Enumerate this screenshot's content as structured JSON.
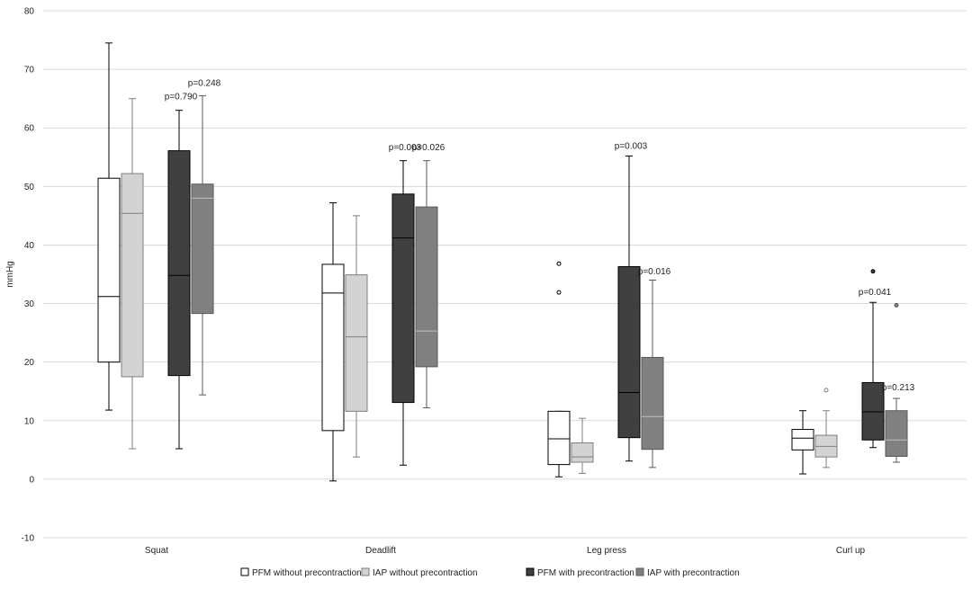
{
  "chart_data": {
    "type": "box",
    "title": "",
    "xlabel": "",
    "ylabel": "mmHg",
    "ylim": [
      -10,
      80
    ],
    "yticks": [
      -10,
      0,
      10,
      20,
      30,
      40,
      50,
      60,
      70,
      80
    ],
    "grid": true,
    "legend_position": "bottom",
    "categories": [
      "Squat",
      "Deadlift",
      "Leg press",
      "Curl up"
    ],
    "series": [
      {
        "name": "PFM without precontraction",
        "fill": "#ffffff",
        "stroke": "#000000",
        "median_color": "#000000",
        "boxes": [
          {
            "min": 11.8,
            "q1": 20.0,
            "median": 31.2,
            "q3": 51.4,
            "max": 74.5,
            "outliers": []
          },
          {
            "min": -0.3,
            "q1": 8.3,
            "median": 31.8,
            "q3": 36.7,
            "max": 47.2,
            "outliers": []
          },
          {
            "min": 0.4,
            "q1": 2.5,
            "median": 6.9,
            "q3": 11.6,
            "max": 11.6,
            "outliers": [
              31.9,
              36.8
            ]
          },
          {
            "min": 0.9,
            "q1": 5.0,
            "median": 7.0,
            "q3": 8.5,
            "max": 11.7,
            "outliers": []
          }
        ]
      },
      {
        "name": "IAP without precontraction",
        "fill": "#d3d3d3",
        "stroke": "#7f7f7f",
        "median_color": "#7f7f7f",
        "boxes": [
          {
            "min": 5.2,
            "q1": 17.5,
            "median": 45.4,
            "q3": 52.2,
            "max": 65.0,
            "outliers": []
          },
          {
            "min": 3.8,
            "q1": 11.6,
            "median": 24.3,
            "q3": 34.9,
            "max": 45.0,
            "outliers": []
          },
          {
            "min": 1.0,
            "q1": 2.9,
            "median": 3.8,
            "q3": 6.2,
            "max": 10.4,
            "outliers": []
          },
          {
            "min": 2.0,
            "q1": 3.8,
            "median": 5.6,
            "q3": 7.5,
            "max": 11.7,
            "outliers": [
              15.2
            ]
          }
        ]
      },
      {
        "name": "PFM with precontraction",
        "fill": "#404040",
        "stroke": "#000000",
        "median_color": "#000000",
        "boxes": [
          {
            "min": 5.2,
            "q1": 17.7,
            "median": 34.8,
            "q3": 56.1,
            "max": 63.0,
            "outliers": []
          },
          {
            "min": 2.4,
            "q1": 13.1,
            "median": 41.2,
            "q3": 48.7,
            "max": 54.4,
            "outliers": []
          },
          {
            "min": 3.1,
            "q1": 7.1,
            "median": 14.8,
            "q3": 36.3,
            "max": 55.2,
            "outliers": []
          },
          {
            "min": 5.4,
            "q1": 6.7,
            "median": 11.5,
            "q3": 16.5,
            "max": 30.2,
            "outliers": [
              35.5
            ]
          }
        ]
      },
      {
        "name": "IAP with precontraction",
        "fill": "#808080",
        "stroke": "#595959",
        "median_color": "#bfbfbf",
        "boxes": [
          {
            "min": 14.4,
            "q1": 28.3,
            "median": 48.0,
            "q3": 50.4,
            "max": 65.5,
            "outliers": []
          },
          {
            "min": 12.2,
            "q1": 19.2,
            "median": 25.3,
            "q3": 46.5,
            "max": 54.4,
            "outliers": []
          },
          {
            "min": 2.0,
            "q1": 5.1,
            "median": 10.7,
            "q3": 20.8,
            "max": 34.0,
            "outliers": []
          },
          {
            "min": 2.9,
            "q1": 3.9,
            "median": 6.7,
            "q3": 11.7,
            "max": 13.8,
            "outliers": [
              29.7
            ]
          }
        ]
      }
    ],
    "annotations": [
      {
        "text": "p=0.790",
        "category": 0,
        "series": 2,
        "y": 64.9
      },
      {
        "text": "p=0.248",
        "category": 0,
        "series": 3,
        "y": 67.2
      },
      {
        "text": "p=0.003",
        "category": 1,
        "series": 2,
        "y": 56.2
      },
      {
        "text": "p=0.026",
        "category": 1,
        "series": 3,
        "y": 56.2
      },
      {
        "text": "p=0.003",
        "category": 2,
        "series": 2,
        "y": 56.4
      },
      {
        "text": "p=0.016",
        "category": 2,
        "series": 3,
        "y": 35.0
      },
      {
        "text": "p=0.041",
        "category": 3,
        "series": 2,
        "y": 31.5
      },
      {
        "text": "p=0.213",
        "category": 3,
        "series": 3,
        "y": 15.2
      }
    ]
  }
}
